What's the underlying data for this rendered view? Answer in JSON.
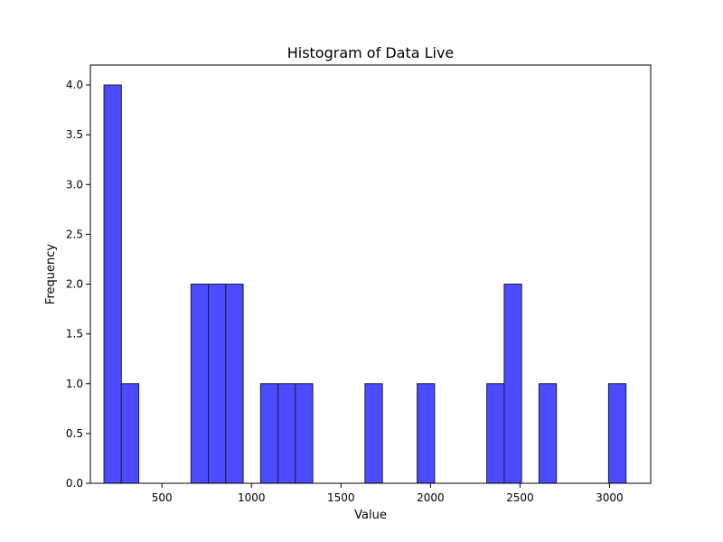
{
  "chart_data": {
    "type": "bar",
    "title": "Histogram of Data Live",
    "xlabel": "Value",
    "ylabel": "Frequency",
    "xlim": [
      100,
      3230
    ],
    "ylim": [
      0,
      4.2
    ],
    "bin_width": 97.2,
    "bins": [
      {
        "start": 176,
        "count": 4
      },
      {
        "start": 273.2,
        "count": 1
      },
      {
        "start": 370.4,
        "count": 0
      },
      {
        "start": 467.6,
        "count": 0
      },
      {
        "start": 564.8,
        "count": 0
      },
      {
        "start": 662,
        "count": 2
      },
      {
        "start": 759.2,
        "count": 2
      },
      {
        "start": 856.4,
        "count": 2
      },
      {
        "start": 953.6,
        "count": 0
      },
      {
        "start": 1050.8,
        "count": 1
      },
      {
        "start": 1148,
        "count": 1
      },
      {
        "start": 1245.2,
        "count": 1
      },
      {
        "start": 1342.4,
        "count": 0
      },
      {
        "start": 1439.6,
        "count": 0
      },
      {
        "start": 1536.8,
        "count": 0
      },
      {
        "start": 1634,
        "count": 1
      },
      {
        "start": 1731.2,
        "count": 0
      },
      {
        "start": 1828.4,
        "count": 0
      },
      {
        "start": 1925.6,
        "count": 1
      },
      {
        "start": 2022.8,
        "count": 0
      },
      {
        "start": 2120,
        "count": 0
      },
      {
        "start": 2217.2,
        "count": 0
      },
      {
        "start": 2314.4,
        "count": 1
      },
      {
        "start": 2411.6,
        "count": 2
      },
      {
        "start": 2508.8,
        "count": 0
      },
      {
        "start": 2606,
        "count": 1
      },
      {
        "start": 2703.2,
        "count": 0
      },
      {
        "start": 2800.4,
        "count": 0
      },
      {
        "start": 2897.6,
        "count": 0
      },
      {
        "start": 2994.8,
        "count": 1
      }
    ],
    "xticks": [
      {
        "value": 500,
        "label": "500"
      },
      {
        "value": 1000,
        "label": "1000"
      },
      {
        "value": 1500,
        "label": "1500"
      },
      {
        "value": 2000,
        "label": "2000"
      },
      {
        "value": 2500,
        "label": "2500"
      },
      {
        "value": 3000,
        "label": "3000"
      }
    ],
    "yticks": [
      {
        "value": 0,
        "label": "0.0"
      },
      {
        "value": 0.5,
        "label": "0.5"
      },
      {
        "value": 1,
        "label": "1.0"
      },
      {
        "value": 1.5,
        "label": "1.5"
      },
      {
        "value": 2,
        "label": "2.0"
      },
      {
        "value": 2.5,
        "label": "2.5"
      },
      {
        "value": 3,
        "label": "3.0"
      },
      {
        "value": 3.5,
        "label": "3.5"
      },
      {
        "value": 4,
        "label": "4.0"
      }
    ],
    "grid": false,
    "colors": {
      "bar_fill": "#4b4bff",
      "bar_edge": "#1a1a40"
    }
  }
}
